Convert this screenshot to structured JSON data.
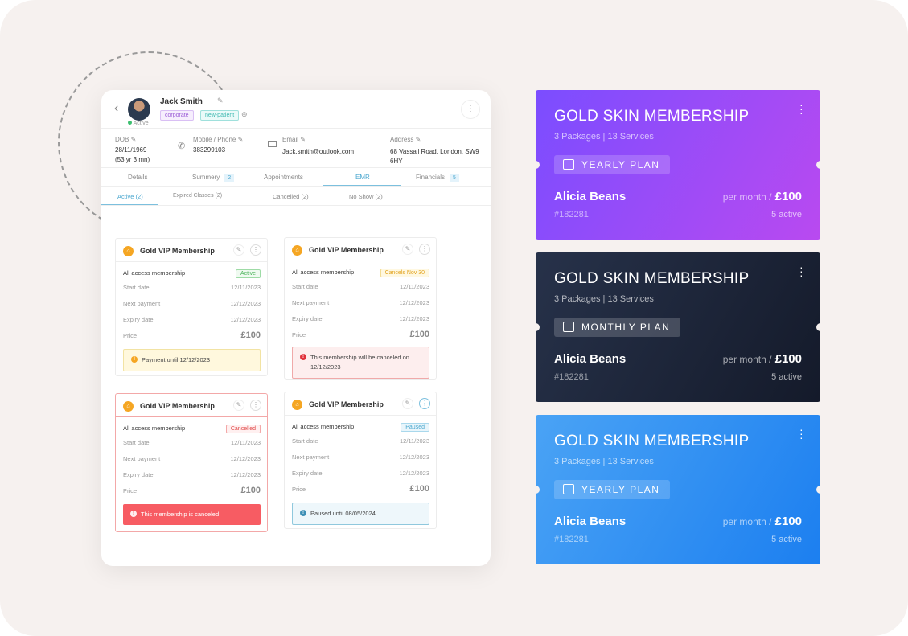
{
  "patient": {
    "name": "Jack Smith",
    "status": "Active",
    "tags": [
      "corporate",
      "new-patient"
    ],
    "dob_label": "DOB",
    "dob": "28/11/1969",
    "age": "(53 yr 3 mn)",
    "phone_label": "Mobile / Phone",
    "phone": "383299103",
    "email_label": "Email",
    "email": "Jack.smith@outlook.com",
    "address_label": "Address",
    "address_line1": "68 Vassall Road, London, SW9",
    "address_line2": "6HY"
  },
  "tabs": [
    {
      "label": "Details"
    },
    {
      "label": "Summery",
      "badge": "2"
    },
    {
      "label": "Appointments"
    },
    {
      "label": "EMR",
      "active": true
    },
    {
      "label": "Financials",
      "badge": "5"
    }
  ],
  "subtabs": [
    {
      "label": "Active",
      "count": "(2)",
      "active": true
    },
    {
      "label": "Expired Classes",
      "count": "(2)"
    },
    {
      "label": "Cancelled",
      "count": "(2)"
    },
    {
      "label": "No Show",
      "count": "(2)"
    }
  ],
  "memberships": [
    {
      "title": "Gold VIP Membership",
      "type": "All access membership",
      "status": "Active",
      "start_label": "Start date",
      "start": "12/11/2023",
      "next_label": "Next payment",
      "next": "12/12/2023",
      "expiry_label": "Expiry date",
      "expiry": "12/12/2023",
      "price_label": "Price",
      "price": "£100",
      "alert": "Payment until 12/12/2023",
      "alert_kind": "warning"
    },
    {
      "title": "Gold VIP Membership",
      "type": "All access membership",
      "status": "Cancels Nov 30",
      "start_label": "Start date",
      "start": "12/11/2023",
      "next_label": "Next payment",
      "next": "12/12/2023",
      "expiry_label": "Expiry date",
      "expiry": "12/12/2023",
      "price_label": "Price",
      "price": "£100",
      "alert": "This membership will be canceled on 12/12/2023",
      "alert_kind": "danger-light"
    },
    {
      "title": "Gold VIP Membership",
      "type": "All access membership",
      "status": "Cancelled",
      "start_label": "Start date",
      "start": "12/11/2023",
      "next_label": "Next payment",
      "next": "12/12/2023",
      "expiry_label": "Expiry date",
      "expiry": "12/12/2023",
      "price_label": "Price",
      "price": "£100",
      "alert": "This membership is canceled",
      "alert_kind": "danger"
    },
    {
      "title": "Gold VIP Membership",
      "type": "All access membership",
      "status": "Paused",
      "start_label": "Start date",
      "start": "12/11/2023",
      "next_label": "Next payment",
      "next": "12/12/2023",
      "expiry_label": "Expiry date",
      "expiry": "12/12/2023",
      "price_label": "Price",
      "price": "£100",
      "alert": "Paused until 08/05/2024",
      "alert_kind": "info"
    }
  ],
  "plans": [
    {
      "title": "GOLD SKIN MEMBERSHIP",
      "subtitle": "3 Packages | 13 Services",
      "plan": "YEARLY PLAN",
      "member": "Alicia Beans",
      "id": "#182281",
      "per": "per month /",
      "price": "£100",
      "active": "5 active",
      "colors": [
        "#7b4dff",
        "#b94af0"
      ]
    },
    {
      "title": "GOLD SKIN MEMBERSHIP",
      "subtitle": "3 Packages | 13 Services",
      "plan": "MONTHLY PLAN",
      "member": "Alicia Beans",
      "id": "#182281",
      "per": "per month /",
      "price": "£100",
      "active": "5 active",
      "colors": [
        "#27324a",
        "#141a2a"
      ]
    },
    {
      "title": "GOLD SKIN MEMBERSHIP",
      "subtitle": "3 Packages | 13 Services",
      "plan": "YEARLY PLAN",
      "member": "Alicia Beans",
      "id": "#182281",
      "per": "per month /",
      "price": "£100",
      "active": "5 active",
      "colors": [
        "#4aa3f5",
        "#1c7ff0"
      ]
    }
  ]
}
